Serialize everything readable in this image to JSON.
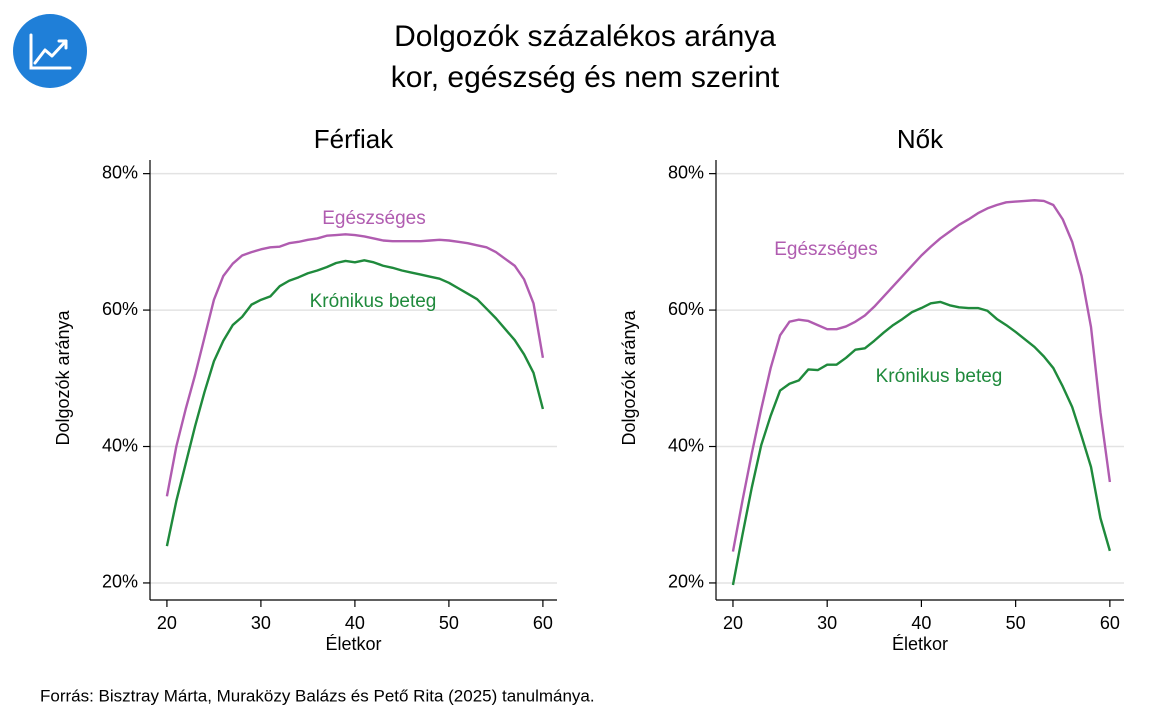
{
  "title": [
    "Dolgozók százalékos aránya",
    "kor, egészség és nem szerint"
  ],
  "source": "Forrás: Bisztray Márta, Muraközy Balázs és Pető Rita (2025) tanulmánya.",
  "chart_data": [
    {
      "type": "line",
      "title": "Férfiak",
      "xlabel": "Életkor",
      "ylabel": "Dolgozók aránya",
      "x": [
        20,
        21,
        22,
        23,
        24,
        25,
        26,
        27,
        28,
        29,
        30,
        31,
        32,
        33,
        34,
        35,
        36,
        37,
        38,
        39,
        40,
        41,
        42,
        43,
        44,
        45,
        46,
        47,
        48,
        49,
        50,
        51,
        52,
        53,
        54,
        55,
        56,
        57,
        58,
        59,
        60
      ],
      "series": [
        {
          "name": "Egészséges",
          "color": "#b05cb0",
          "values": [
            32.7,
            40,
            45.5,
            50.5,
            56,
            61.5,
            65,
            66.8,
            68,
            68.5,
            68.9,
            69.2,
            69.3,
            69.8,
            70,
            70.3,
            70.5,
            70.9,
            71,
            71.1,
            71,
            70.8,
            70.5,
            70.2,
            70.1,
            70.1,
            70.1,
            70.1,
            70.2,
            70.3,
            70.2,
            70,
            69.8,
            69.5,
            69.2,
            68.5,
            67.5,
            66.5,
            64.5,
            61,
            53
          ]
        },
        {
          "name": "Krónikus beteg",
          "color": "#1f8a3c",
          "values": [
            25.4,
            32,
            37.5,
            43,
            48,
            52.5,
            55.5,
            57.8,
            59,
            60.8,
            61.5,
            62,
            63.5,
            64.3,
            64.8,
            65.4,
            65.8,
            66.3,
            66.9,
            67.2,
            67,
            67.3,
            67,
            66.5,
            66.2,
            65.8,
            65.5,
            65.2,
            64.9,
            64.6,
            64,
            63.2,
            62.4,
            61.6,
            60.2,
            58.8,
            57.2,
            55.6,
            53.5,
            50.8,
            45.5
          ]
        }
      ],
      "xlim": [
        18.2,
        61.5
      ],
      "ylim": [
        17.5,
        82
      ],
      "xticks": [
        20,
        30,
        40,
        50,
        60
      ],
      "yticks": [
        {
          "value": 20,
          "label": "20%"
        },
        {
          "value": 40,
          "label": "40%"
        },
        {
          "value": 60,
          "label": "60%"
        },
        {
          "value": 80,
          "label": "80%"
        }
      ],
      "grid": true
    },
    {
      "type": "line",
      "title": "Nők",
      "xlabel": "Életkor",
      "ylabel": "Dolgozók aránya",
      "x": [
        20,
        21,
        22,
        23,
        24,
        25,
        26,
        27,
        28,
        29,
        30,
        31,
        32,
        33,
        34,
        35,
        36,
        37,
        38,
        39,
        40,
        41,
        42,
        43,
        44,
        45,
        46,
        47,
        48,
        49,
        50,
        51,
        52,
        53,
        54,
        55,
        56,
        57,
        58,
        59,
        60
      ],
      "series": [
        {
          "name": "Egészséges",
          "color": "#b05cb0",
          "values": [
            24.6,
            32,
            39,
            45.5,
            51.5,
            56.3,
            58.3,
            58.6,
            58.4,
            57.8,
            57.2,
            57.2,
            57.6,
            58.3,
            59.2,
            60.5,
            62,
            63.5,
            65,
            66.5,
            68,
            69.3,
            70.5,
            71.5,
            72.5,
            73.3,
            74.2,
            74.9,
            75.4,
            75.8,
            75.9,
            76,
            76.1,
            76,
            75.4,
            73.3,
            70,
            65,
            57.5,
            45,
            34.8
          ]
        },
        {
          "name": "Krónikus beteg",
          "color": "#1f8a3c",
          "values": [
            19.7,
            27,
            34,
            40.2,
            44.5,
            48.2,
            49.2,
            49.7,
            51.3,
            51.2,
            52,
            52,
            53,
            54.2,
            54.4,
            55.5,
            56.7,
            57.8,
            58.7,
            59.7,
            60.3,
            61,
            61.2,
            60.7,
            60.4,
            60.3,
            60.3,
            59.9,
            58.7,
            57.8,
            56.8,
            55.7,
            54.6,
            53.2,
            51.5,
            48.8,
            45.8,
            41.5,
            37,
            29.5,
            24.7
          ]
        }
      ],
      "xlim": [
        18.2,
        61.5
      ],
      "ylim": [
        17.5,
        82
      ],
      "xticks": [
        20,
        30,
        40,
        50,
        60
      ],
      "yticks": [
        {
          "value": 20,
          "label": "20%"
        },
        {
          "value": 40,
          "label": "40%"
        },
        {
          "value": 60,
          "label": "60%"
        },
        {
          "value": 80,
          "label": "80%"
        }
      ],
      "grid": true
    }
  ]
}
